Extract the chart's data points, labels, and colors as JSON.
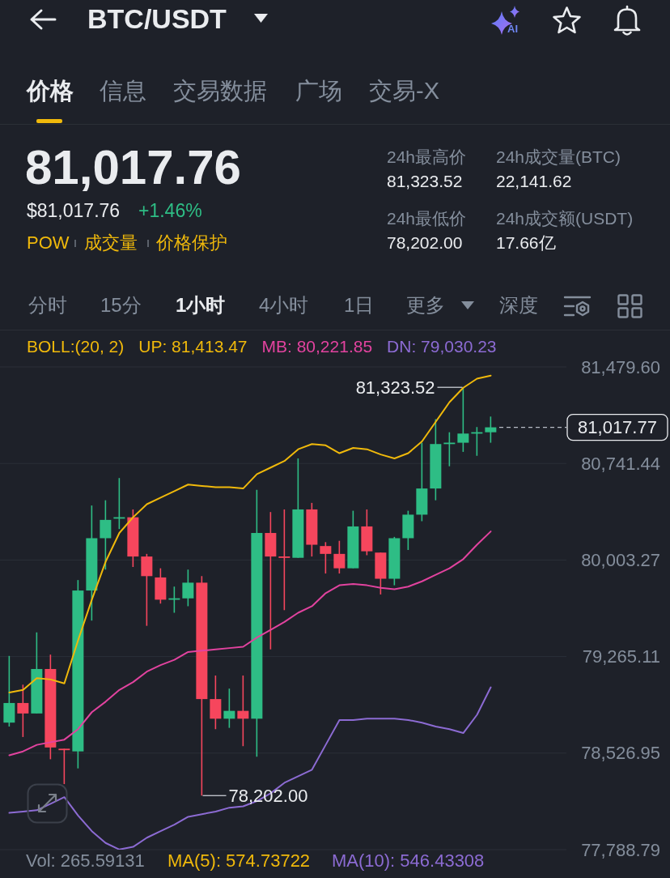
{
  "chart_data": {
    "type": "candlestick",
    "title": "BTC/USDT",
    "categories": [
      null,
      null,
      null,
      null,
      null,
      null,
      null,
      null,
      null,
      null,
      null,
      null,
      null,
      null,
      null,
      null,
      null,
      null,
      null,
      null,
      null,
      null,
      null,
      null,
      null,
      null,
      null,
      null,
      null,
      null,
      null,
      null,
      null,
      null,
      null,
      null
    ],
    "ohlc": [
      [
        78760,
        79270,
        78730,
        78910
      ],
      [
        78910,
        79050,
        78650,
        78830
      ],
      [
        78830,
        79450,
        78830,
        79170
      ],
      [
        79170,
        79280,
        78480,
        78570
      ],
      [
        78560,
        78560,
        78290,
        78550
      ],
      [
        78540,
        79850,
        78410,
        79770
      ],
      [
        79770,
        80420,
        79540,
        80170
      ],
      [
        80170,
        80460,
        79930,
        80310
      ],
      [
        80320,
        80630,
        80240,
        80330
      ],
      [
        80330,
        80390,
        79950,
        80030
      ],
      [
        80030,
        80050,
        79500,
        79880
      ],
      [
        79870,
        79940,
        79670,
        79700
      ],
      [
        79700,
        79800,
        79600,
        79710
      ],
      [
        79710,
        79930,
        79650,
        79830
      ],
      [
        79830,
        79880,
        78202.0,
        78940
      ],
      [
        78940,
        79120,
        78710,
        78790
      ],
      [
        78790,
        79020,
        78720,
        78850
      ],
      [
        78850,
        79120,
        78580,
        78790
      ],
      [
        78790,
        80540,
        78500,
        80210
      ],
      [
        80210,
        80370,
        79320,
        80030
      ],
      [
        80030,
        80390,
        79620,
        80020
      ],
      [
        80020,
        80780,
        80020,
        80390
      ],
      [
        80390,
        80440,
        80030,
        80120
      ],
      [
        80110,
        80140,
        79900,
        80050
      ],
      [
        80050,
        80150,
        79900,
        79940
      ],
      [
        79940,
        80380,
        79940,
        80260
      ],
      [
        80260,
        80390,
        80040,
        80070
      ],
      [
        80060,
        80060,
        79740,
        79860
      ],
      [
        79860,
        80180,
        79810,
        80170
      ],
      [
        80170,
        80380,
        80080,
        80350
      ],
      [
        80350,
        80900,
        80300,
        80550
      ],
      [
        80550,
        81080,
        80460,
        80890
      ],
      [
        80890,
        80980,
        80720,
        80900
      ],
      [
        80900,
        81323.52,
        80830,
        80970
      ],
      [
        80970,
        81020,
        80800,
        80980
      ],
      [
        80980,
        81100,
        80900,
        81017.77
      ]
    ],
    "colors": [
      "#2ebd85",
      "#f6465d",
      "#2ebd85",
      "#f6465d",
      "#f6465d",
      "#2ebd85",
      "#2ebd85",
      "#2ebd85",
      "#2ebd85",
      "#f6465d",
      "#f6465d",
      "#f6465d",
      "#2ebd85",
      "#2ebd85",
      "#f6465d",
      "#f6465d",
      "#2ebd85",
      "#f6465d",
      "#2ebd85",
      "#f6465d",
      "#f6465d",
      "#2ebd85",
      "#f6465d",
      "#f6465d",
      "#f6465d",
      "#2ebd85",
      "#f6465d",
      "#f6465d",
      "#2ebd85",
      "#2ebd85",
      "#2ebd85",
      "#2ebd85",
      "#2ebd85",
      "#2ebd85",
      "#2ebd85",
      "#2ebd85"
    ],
    "series": [
      {
        "name": "UP: 81,413.47",
        "type": "line",
        "color": "#f0b90b",
        "values": [
          78990,
          79010,
          79100,
          79090,
          79060,
          79390,
          79700,
          79990,
          80210,
          80330,
          80430,
          80480,
          80530,
          80580,
          80570,
          80560,
          80560,
          80550,
          80660,
          80710,
          80760,
          80850,
          80890,
          80880,
          80820,
          80860,
          80850,
          80810,
          80780,
          80820,
          80910,
          81060,
          81210,
          81320,
          81390,
          81413.47
        ]
      },
      {
        "name": "MB: 80,221.85",
        "type": "line",
        "color": "#e2439f",
        "values": [
          78510,
          78540,
          78590,
          78610,
          78630,
          78710,
          78840,
          78920,
          79010,
          79070,
          79150,
          79200,
          79240,
          79300,
          79310,
          79320,
          79330,
          79340,
          79410,
          79470,
          79530,
          79600,
          79650,
          79750,
          79810,
          79820,
          79810,
          79790,
          79780,
          79800,
          79840,
          79890,
          79940,
          80010,
          80120,
          80221.85
        ]
      },
      {
        "name": "DN: 79,030.23",
        "type": "line",
        "color": "#8c6bd3",
        "values": [
          78070,
          78080,
          78090,
          78140,
          78190,
          78050,
          77930,
          77840,
          77790,
          77810,
          77880,
          77930,
          77980,
          78040,
          78060,
          78080,
          78110,
          78120,
          78160,
          78220,
          78300,
          78350,
          78400,
          78590,
          78780,
          78780,
          78790,
          78790,
          78790,
          78780,
          78760,
          78730,
          78710,
          78680,
          78820,
          79030.23
        ]
      }
    ],
    "legend_title": "BOLL:(20, 2)",
    "legend": "top",
    "marker": "none",
    "grid": "y",
    "tick_labels": "y",
    "ylim": [
      77788.79,
      81479.6
    ],
    "yticks": [
      {
        "value": 77788.79,
        "label": "77,788.79"
      },
      {
        "value": 78526.95,
        "label": "78,526.95"
      },
      {
        "value": 79265.11,
        "label": "79,265.11"
      },
      {
        "value": 80003.27,
        "label": "80,003.27"
      },
      {
        "value": 80741.44,
        "label": "80,741.44"
      },
      {
        "value": 81479.6,
        "label": "81,479.60"
      }
    ],
    "ref_lines": [
      {
        "axis": "y",
        "value": 81017.77,
        "label": "81,017.77",
        "line_style": "dashed",
        "color": "#b7bdc6"
      }
    ],
    "annotations": [
      "价格",
      "信息",
      "交易数据",
      "广场",
      "交易-X",
      "81,017.76",
      "$81,017.76",
      "+1.46%",
      "POW",
      "成交量",
      "价格保护",
      "24h最高价",
      "81,323.52",
      "24h成交量(BTC)",
      "22,141.62",
      "24h最低价",
      "78,202.00",
      "24h成交额(USDT)",
      "17.66亿",
      "分时",
      "15分",
      "1小时",
      "4小时",
      "1日",
      "更多",
      "深度",
      "AI",
      "Vol: 265.59131",
      "MA(5): 574.73722",
      "MA(10): 546.43308",
      "81,323.52",
      "78,202.00"
    ]
  }
}
